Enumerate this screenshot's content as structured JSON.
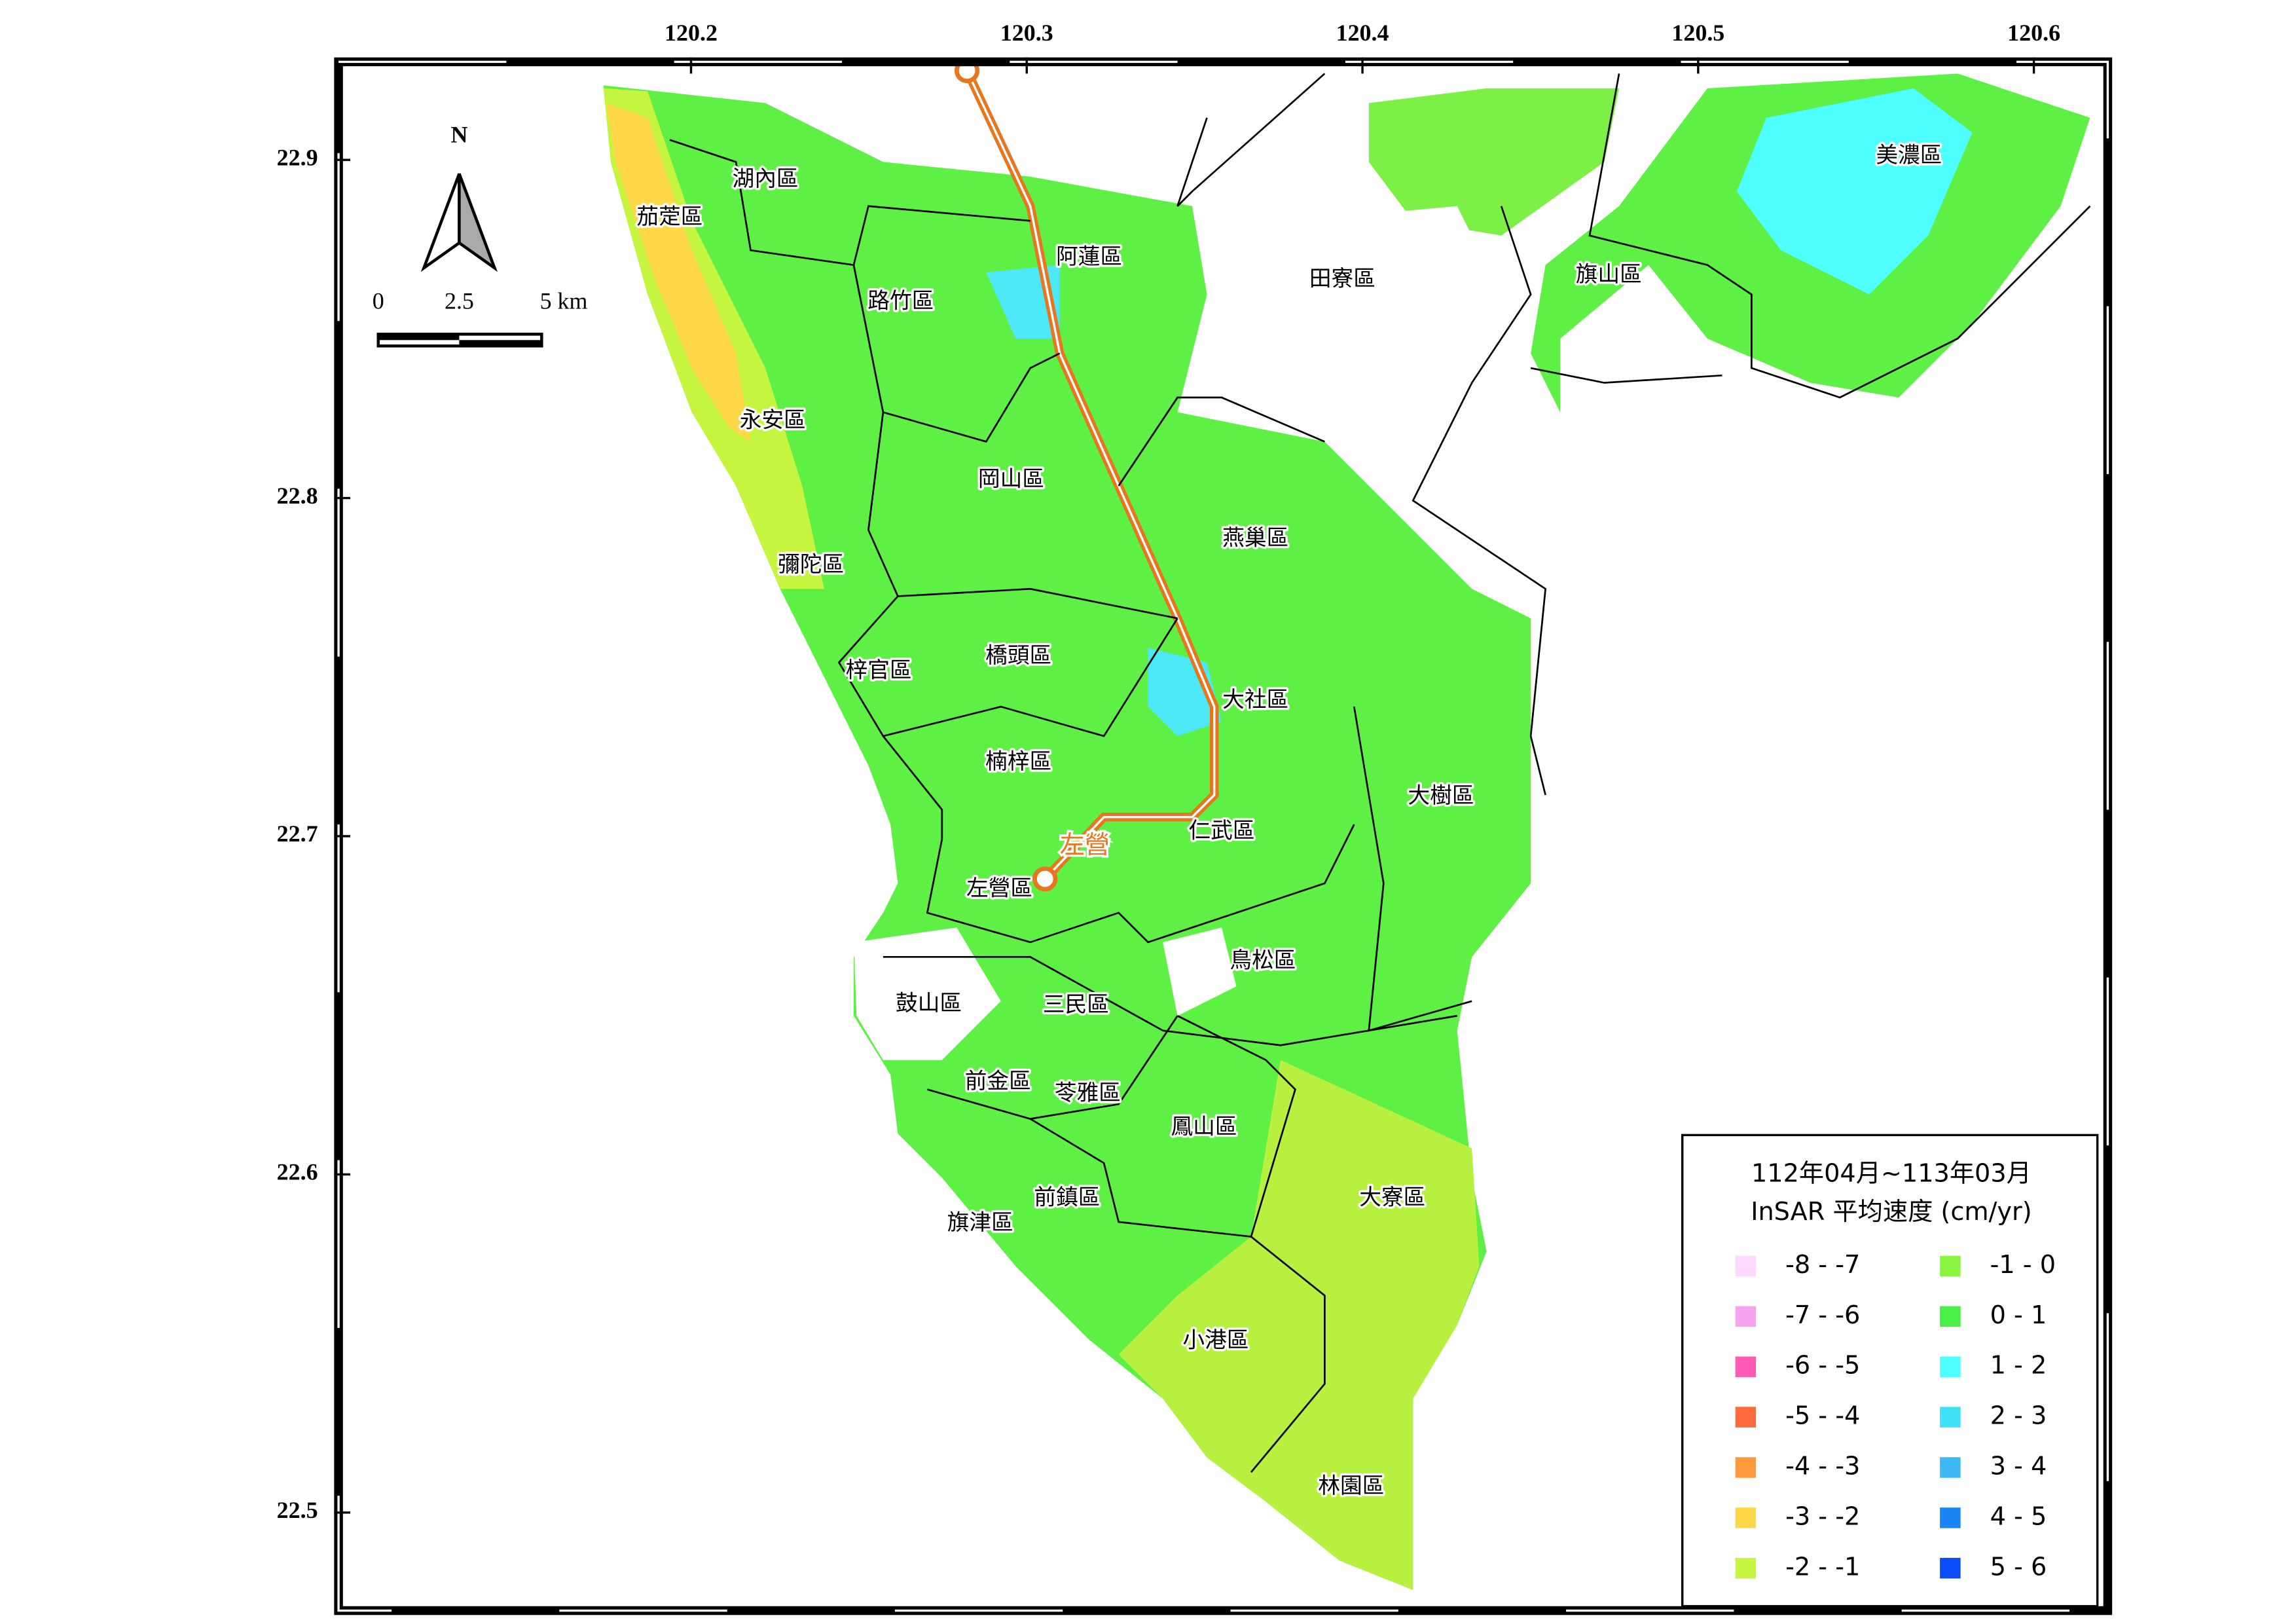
{
  "map": {
    "xlim": [
      120.095,
      120.622
    ],
    "ylim": [
      22.471,
      22.929
    ],
    "xticks": [
      120.2,
      120.3,
      120.4,
      120.5,
      120.6
    ],
    "yticks": [
      22.5,
      22.6,
      22.7,
      22.8,
      22.9
    ]
  },
  "north_label": "N",
  "scale_bar": {
    "labels": [
      "0",
      "2.5",
      "5 km"
    ]
  },
  "districts": [
    "湖內區",
    "茄萣區",
    "路竹區",
    "阿蓮區",
    "田寮區",
    "旗山區",
    "美濃區",
    "永安區",
    "岡山區",
    "燕巢區",
    "彌陀區",
    "梓官區",
    "橋頭區",
    "大社區",
    "楠梓區",
    "大樹區",
    "仁武區",
    "左營區",
    "鳥松區",
    "鼓山區",
    "三民區",
    "前金區",
    "苓雅區",
    "鳳山區",
    "大寮區",
    "前鎮區",
    "旗津區",
    "小港區",
    "林園區"
  ],
  "station": "左營",
  "legend": {
    "title": [
      "112年04月~113年03月",
      "InSAR 平均速度 (cm/yr)"
    ],
    "items": [
      {
        "label": "-8 - -7",
        "color": "#ffd9ff"
      },
      {
        "label": "-7 - -6",
        "color": "#f7a3f2"
      },
      {
        "label": "-6 - -5",
        "color": "#ff5ab4"
      },
      {
        "label": "-5 - -4",
        "color": "#ff6a3c"
      },
      {
        "label": "-4 - -3",
        "color": "#ff9a3c"
      },
      {
        "label": "-3 - -2",
        "color": "#ffd84a"
      },
      {
        "label": "-2 - -1",
        "color": "#c5f53e"
      },
      {
        "label": "-1 - 0",
        "color": "#8af53e"
      },
      {
        "label": "0 - 1",
        "color": "#47ef47"
      },
      {
        "label": "1 - 2",
        "color": "#4dffff"
      },
      {
        "label": "2 - 3",
        "color": "#3ee0f5"
      },
      {
        "label": "3 - 4",
        "color": "#3eb7f5"
      },
      {
        "label": "4 - 5",
        "color": "#1a85f5"
      },
      {
        "label": "5 - 6",
        "color": "#0a4cf5"
      }
    ]
  }
}
